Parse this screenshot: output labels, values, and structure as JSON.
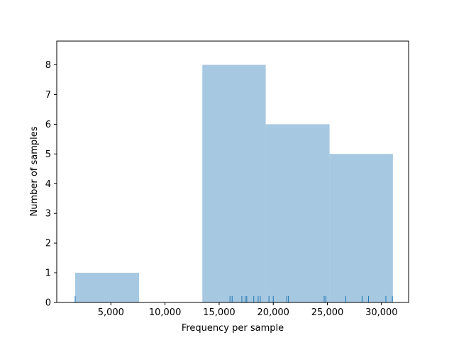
{
  "chart_data": {
    "type": "histogram",
    "xlabel": "Frequency per sample",
    "ylabel": "Number of samples",
    "xlim": [
      0,
      32500
    ],
    "ylim": [
      0,
      8.8
    ],
    "grid": false,
    "bar_color": "#a6c8e0",
    "rug_color": "#1f77b4",
    "bins": [
      {
        "x0": 1700,
        "x1": 7600,
        "count": 1
      },
      {
        "x0": 7600,
        "x1": 13450,
        "count": 0
      },
      {
        "x0": 13450,
        "x1": 19300,
        "count": 8
      },
      {
        "x0": 19300,
        "x1": 25200,
        "count": 6
      },
      {
        "x0": 25200,
        "x1": 31050,
        "count": 5
      }
    ],
    "rug": [
      1700,
      16000,
      16200,
      17100,
      17400,
      17550,
      18200,
      18600,
      18800,
      19600,
      20000,
      21250,
      21400,
      24700,
      24850,
      26700,
      28200,
      28800,
      30400,
      31000
    ],
    "x_ticks": [
      {
        "value": 5000,
        "label": "5,000"
      },
      {
        "value": 10000,
        "label": "10,000"
      },
      {
        "value": 15000,
        "label": "15,000"
      },
      {
        "value": 20000,
        "label": "20,000"
      },
      {
        "value": 25000,
        "label": "25,000"
      },
      {
        "value": 30000,
        "label": "30,000"
      }
    ],
    "y_ticks": [
      {
        "value": 0,
        "label": "0"
      },
      {
        "value": 1,
        "label": "1"
      },
      {
        "value": 2,
        "label": "2"
      },
      {
        "value": 3,
        "label": "3"
      },
      {
        "value": 4,
        "label": "4"
      },
      {
        "value": 5,
        "label": "5"
      },
      {
        "value": 6,
        "label": "6"
      },
      {
        "value": 7,
        "label": "7"
      },
      {
        "value": 8,
        "label": "8"
      }
    ]
  }
}
